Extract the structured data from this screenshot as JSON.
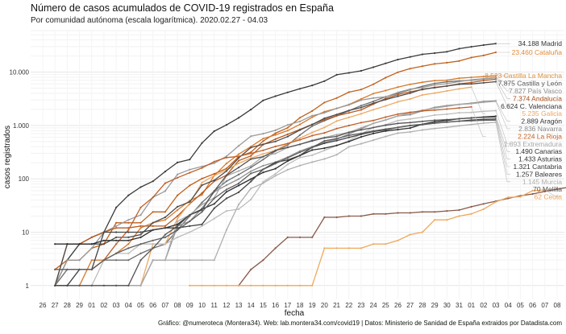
{
  "chart_data": {
    "type": "line",
    "title": "Número de casos acumulados de COVID-19 registrados en España",
    "subtitle": "Por comunidad autónoma (escala logarítmica). 2020.02.27 - 04.03",
    "xlabel": "fecha",
    "ylabel": "casos registrados",
    "caption": "Gráfico: @numeroteca (Montera34). Web: lab.montera34.com/covid19 | Datos: Ministerio de Sanidad de España extraidos por Datadista.com",
    "y_scale": "log",
    "ylim": [
      0.55,
      60000
    ],
    "y_ticks": [
      {
        "value": 1,
        "label": "1"
      },
      {
        "value": 10,
        "label": "10"
      },
      {
        "value": 100,
        "label": "100"
      },
      {
        "value": 1000,
        "label": "1.000"
      },
      {
        "value": 10000,
        "label": "10.000"
      }
    ],
    "x_ticks": [
      "26",
      "27",
      "28",
      "29",
      "01",
      "02",
      "03",
      "04",
      "05",
      "06",
      "07",
      "08",
      "09",
      "10",
      "11",
      "12",
      "13",
      "14",
      "15",
      "16",
      "17",
      "18",
      "19",
      "20",
      "21",
      "22",
      "23",
      "24",
      "25",
      "26",
      "27",
      "28",
      "29",
      "30",
      "31",
      "01",
      "02",
      "03",
      "04",
      "05",
      "06",
      "07",
      "08"
    ],
    "x_start": "2020-02-26",
    "grid": true,
    "legend": "direct labels at line ends",
    "series": [
      {
        "name": "Madrid",
        "label": "34.188 Madrid",
        "color": "#3a3a3a",
        "label_color": "#333333",
        "start": "2020-02-27",
        "values": [
          1,
          3,
          6,
          8,
          10,
          29,
          49,
          70,
          90,
          137,
          202,
          230,
          469,
          782,
          1024,
          1388,
          1990,
          2940,
          3544,
          4165,
          4871,
          5637,
          6777,
          8921,
          9702,
          10575,
          12352,
          14597,
          17166,
          19243,
          21520,
          22677,
          24090,
          27509,
          29840,
          32155,
          34188
        ]
      },
      {
        "name": "Cataluña",
        "label": "23.460 Cataluña",
        "color": "#c0601a",
        "label_color": "#e08a3c",
        "start": "2020-02-27",
        "values": [
          2,
          3,
          3,
          5,
          6,
          15,
          15,
          15,
          24,
          24,
          49,
          75,
          101,
          124,
          156,
          260,
          316,
          509,
          715,
          903,
          1394,
          1866,
          2702,
          3270,
          4203,
          4704,
          5925,
          7864,
          9937,
          11592,
          12940,
          14263,
          15026,
          16157,
          18773,
          20551,
          23460
        ]
      },
      {
        "name": "Castilla-La Mancha",
        "label": "8.523 Castilla La Mancha",
        "color": "#d67a2c",
        "label_color": "#e0913f",
        "start": "2020-02-27",
        "values": [
          1,
          1,
          1,
          3,
          3,
          4,
          6,
          12,
          15,
          17,
          26,
          39,
          50,
          115,
          194,
          289,
          401,
          568,
          665,
          801,
          1044,
          1423,
          1819,
          2078,
          2465,
          3135,
          3950,
          4520,
          5246,
          5900,
          6454,
          6922,
          7047,
          7682,
          7978,
          8224,
          8523
        ]
      },
      {
        "name": "Castilla y León",
        "label": "7.875 Castilla y León",
        "color": "#6e6e6e",
        "label_color": "#555555",
        "start": "2020-02-27",
        "values": [
          1,
          2,
          2,
          2,
          3,
          3,
          3,
          4,
          5,
          6,
          11,
          20,
          36,
          59,
          90,
          120,
          163,
          230,
          331,
          428,
          661,
          972,
          1228,
          1513,
          1887,
          2361,
          2822,
          3452,
          4012,
          4694,
          5414,
          6156,
          6576,
          6847,
          7049,
          7431,
          7875
        ]
      },
      {
        "name": "País Vasco",
        "label": "7.827 País Vasco",
        "color": "#9a9a9a",
        "label_color": "#8a8a8a",
        "start": "2020-02-27",
        "values": [
          1,
          3,
          3,
          5,
          10,
          13,
          17,
          21,
          45,
          59,
          121,
          149,
          170,
          196,
          264,
          415,
          630,
          701,
          812,
          1024,
          1190,
          1525,
          1725,
          2097,
          2421,
          2990,
          3271,
          3440,
          4171,
          4791,
          5136,
          5740,
          6070,
          6629,
          7172,
          7531,
          7827
        ]
      },
      {
        "name": "Andalucía",
        "label": "7.374 Andalucía",
        "color": "#b85a20",
        "label_color": "#a85018",
        "start": "2020-02-27",
        "values": [
          1,
          6,
          6,
          8,
          10,
          12,
          12,
          13,
          13,
          13,
          20,
          34,
          54,
          90,
          117,
          219,
          269,
          437,
          554,
          683,
          842,
          1048,
          1287,
          1515,
          1725,
          1961,
          2513,
          3200,
          3793,
          4283,
          4682,
          5178,
          5486,
          6023,
          6392,
          6972,
          7374
        ]
      },
      {
        "name": "Galicia",
        "label": "5.235 Galicia",
        "color": "#eea964",
        "label_color": "#f0a45c",
        "start": "2020-03-01",
        "values": [
          1,
          1,
          1,
          1,
          1,
          6,
          6,
          18,
          35,
          85,
          115,
          146,
          195,
          245,
          292,
          341,
          455,
          580,
          739,
          915,
          1208,
          1415,
          1653,
          1977,
          2322,
          2772,
          3139,
          3723,
          4039,
          4432,
          4842,
          5235
        ]
      },
      {
        "name": "C. Valenciana",
        "label": "6.624 C. Valenciana",
        "color": "#4c4c4c",
        "label_color": "#333333",
        "start": "2020-02-27",
        "values": [
          1,
          6,
          6,
          6,
          6,
          8,
          8,
          9,
          15,
          19,
          30,
          37,
          76,
          94,
          140,
          246,
          386,
          444,
          501,
          620,
          822,
          1040,
          1363,
          1604,
          1905,
          2167,
          2616,
          3058,
          3532,
          4034,
          4784,
          5094,
          5477,
          5922,
          6006,
          6309,
          6624
        ]
      },
      {
        "name": "Aragón",
        "label": "2.889 Aragón",
        "color": "#8f8f8f",
        "label_color": "#333333",
        "start": "2020-02-27",
        "values": [
          1,
          1,
          1,
          1,
          1,
          1,
          1,
          1,
          3,
          3,
          13,
          16,
          28,
          57,
          76,
          99,
          139,
          176,
          205,
          255,
          331,
          401,
          483,
          550,
          694,
          863,
          1098,
          1267,
          1506,
          1594,
          1873,
          2184,
          2358,
          2481,
          2616,
          2821,
          2889
        ]
      },
      {
        "name": "Navarra",
        "label": "2.836 Navarra",
        "color": "#a8a8a8",
        "label_color": "#8a8a8a",
        "start": "2020-02-27",
        "values": [
          1,
          1,
          1,
          1,
          1,
          1,
          1,
          1,
          3,
          3,
          16,
          21,
          33,
          44,
          113,
          140,
          174,
          263,
          297,
          387,
          441,
          531,
          597,
          671,
          744,
          904,
          1091,
          1273,
          1512,
          1706,
          1932,
          2118,
          2286,
          2466,
          2560,
          2717,
          2836
        ]
      },
      {
        "name": "La Rioja",
        "label": "2.224 La Rioja",
        "color": "#c0602a",
        "label_color": "#c86020",
        "start": "2020-03-01",
        "values": [
          2,
          3,
          6,
          11,
          29,
          45,
          83,
          105,
          130,
          160,
          210,
          250,
          263,
          300,
          342,
          404,
          459,
          537,
          646,
          725,
          875,
          996,
          1127,
          1238,
          1435,
          1629,
          1767,
          1875,
          1941,
          2030,
          2133,
          2224
        ]
      },
      {
        "name": "Extremadura",
        "label": "1.893 Extremadura",
        "color": "#bdbdbd",
        "label_color": "#a8a8a8",
        "start": "2020-02-27",
        "values": [
          1,
          1,
          1,
          1,
          3,
          4,
          4,
          6,
          6,
          6,
          8,
          10,
          13,
          18,
          25,
          27,
          41,
          88,
          124,
          187,
          251,
          277,
          341,
          421,
          521,
          694,
          916,
          1031,
          1235,
          1324,
          1430,
          1565,
          1624,
          1731,
          1753,
          1840,
          1893
        ]
      },
      {
        "name": "Canarias",
        "label": "1.490 Canarias",
        "color": "#2e2e2e",
        "label_color": "#333333",
        "start": "2020-02-27",
        "values": [
          6,
          6,
          6,
          6,
          7,
          7,
          7,
          8,
          11,
          12,
          14,
          21,
          27,
          34,
          57,
          75,
          99,
          132,
          155,
          215,
          273,
          347,
          376,
          423,
          499,
          611,
          706,
          786,
          837,
          895,
          1055,
          1178,
          1240,
          1338,
          1380,
          1444,
          1490
        ]
      },
      {
        "name": "Asturias",
        "label": "1.433 Asturias",
        "color": "#555555",
        "label_color": "#333333",
        "start": "2020-02-27",
        "values": [
          1,
          1,
          1,
          1,
          1,
          1,
          1,
          3,
          5,
          9,
          13,
          21,
          26,
          59,
          116,
          163,
          234,
          260,
          341,
          389,
          443,
          514,
          583,
          624,
          743,
          826,
          912,
          1009,
          1095,
          1134,
          1193,
          1252,
          1290,
          1332,
          1389,
          1420,
          1433
        ]
      },
      {
        "name": "Cantabria",
        "label": "1.321 Cantabria",
        "color": "#424242",
        "label_color": "#333333",
        "start": "2020-02-27",
        "values": [
          1,
          1,
          2,
          2,
          10,
          10,
          10,
          10,
          11,
          12,
          12,
          13,
          14,
          28,
          43,
          56,
          89,
          151,
          203,
          226,
          275,
          389,
          464,
          519,
          598,
          681,
          767,
          829,
          919,
          991,
          1034,
          1103,
          1151,
          1206,
          1262,
          1300,
          1321
        ]
      },
      {
        "name": "Baleares",
        "label": "1.257 Baleares",
        "color": "#5e5e5e",
        "label_color": "#333333",
        "start": "2020-02-27",
        "values": [
          2,
          2,
          2,
          2,
          3,
          4,
          5,
          6,
          7,
          8,
          11,
          16,
          24,
          43,
          63,
          82,
          126,
          150,
          193,
          247,
          314,
          386,
          515,
          568,
          651,
          711,
          792,
          856,
          921,
          1004,
          1052,
          1110,
          1155,
          1202,
          1224,
          1247,
          1257
        ]
      },
      {
        "name": "Murcia",
        "label": "1.145 Murcia",
        "color": "#b0b0b0",
        "label_color": "#b0b0b0",
        "start": "2020-03-07",
        "values": [
          3,
          3,
          3,
          3,
          3,
          11,
          33,
          66,
          83,
          114,
          148,
          177,
          206,
          236,
          283,
          398,
          455,
          532,
          621,
          719,
          755,
          823,
          875,
          923,
          986,
          1041,
          1104,
          1145
        ]
      },
      {
        "name": "Melilla",
        "label": "70 Melilla",
        "color": "#8a5a4a",
        "label_color": "#555555",
        "start": "2020-03-13",
        "values": [
          1,
          2,
          3,
          5,
          8,
          8,
          8,
          19,
          19,
          20,
          20,
          22,
          22,
          23,
          23,
          24,
          24,
          25,
          26,
          30,
          34,
          38,
          43,
          48,
          52,
          58,
          64,
          70
        ]
      },
      {
        "name": "Ceuta",
        "label": "62 Ceuta",
        "color": "#f0a85c",
        "label_color": "#f0a45c",
        "start": "2020-03-09",
        "values": [
          1,
          1,
          1,
          1,
          1,
          1,
          1,
          1,
          1,
          1,
          1,
          5,
          5,
          5,
          5,
          6,
          6,
          7,
          9,
          10,
          17,
          17,
          20,
          22,
          27,
          37,
          45,
          46,
          60,
          62
        ]
      }
    ]
  }
}
